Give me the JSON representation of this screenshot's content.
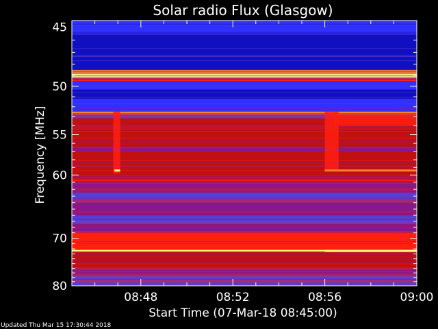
{
  "chart_data": {
    "type": "heatmap",
    "title": "Solar radio Flux (Glasgow)",
    "xlabel": "Start Time (07-Mar-18 08:45:00)",
    "ylabel": "Frequency [MHz]",
    "x_tick_labels": [
      "08:48",
      "08:52",
      "08:56",
      "09:00"
    ],
    "x_tick_values": [
      3,
      7,
      11,
      15
    ],
    "xlim": [
      0,
      15
    ],
    "y_tick_labels": [
      "45",
      "50",
      "55",
      "60",
      "70",
      "80"
    ],
    "y_tick_values": [
      45,
      50,
      55,
      60,
      70,
      80
    ],
    "ylim": [
      44.5,
      80
    ],
    "y_scale": "reciprocal",
    "footer": "Updated Thu Mar 15 17:30:44 2018",
    "colormap": [
      "#000000",
      "#1010c0",
      "#3030ff",
      "#5a3cd0",
      "#8a1888",
      "#c01010",
      "#ff2010",
      "#ff8030",
      "#ffff80"
    ],
    "bands": [
      {
        "f0": 44.5,
        "f1": 45.5,
        "level": 2
      },
      {
        "f0": 45.5,
        "f1": 48.5,
        "level": 1
      },
      {
        "f0": 48.5,
        "f1": 48.8,
        "level": 7
      },
      {
        "f0": 48.8,
        "f1": 49.2,
        "level": 8
      },
      {
        "f0": 49.2,
        "f1": 49.5,
        "level": 6
      },
      {
        "f0": 49.5,
        "f1": 50.3,
        "level": 2
      },
      {
        "f0": 50.3,
        "f1": 51.2,
        "level": 1
      },
      {
        "f0": 51.2,
        "f1": 52.5,
        "level": 2
      },
      {
        "f0": 52.5,
        "f1": 52.8,
        "level": 7
      },
      {
        "f0": 52.8,
        "f1": 53.2,
        "level": 3
      },
      {
        "f0": 53.2,
        "f1": 56.5,
        "level": 5
      },
      {
        "f0": 56.5,
        "f1": 57.0,
        "level": 4
      },
      {
        "f0": 57.0,
        "f1": 61.0,
        "level": 5
      },
      {
        "f0": 61.0,
        "f1": 62.5,
        "level": 4
      },
      {
        "f0": 62.5,
        "f1": 64.0,
        "level": 3
      },
      {
        "f0": 64.0,
        "f1": 66.0,
        "level": 4
      },
      {
        "f0": 66.0,
        "f1": 67.5,
        "level": 3
      },
      {
        "f0": 67.5,
        "f1": 69.0,
        "level": 4
      },
      {
        "f0": 69.0,
        "f1": 72.2,
        "level": 6
      },
      {
        "f0": 72.2,
        "f1": 72.6,
        "level": 8
      },
      {
        "f0": 72.6,
        "f1": 76.0,
        "level": 5
      },
      {
        "f0": 76.0,
        "f1": 77.5,
        "level": 4
      },
      {
        "f0": 77.5,
        "f1": 80.0,
        "level": 3
      }
    ],
    "vertical_features": [
      {
        "t0": 1.8,
        "t1": 2.1,
        "f0": 52.5,
        "f1": 59.8,
        "level": 6
      },
      {
        "t0": 11.0,
        "t1": 11.6,
        "f0": 52.5,
        "f1": 59.5,
        "level": 6
      },
      {
        "t0": 11.4,
        "t1": 15.0,
        "f0": 52.8,
        "f1": 54.0,
        "level": 6
      }
    ],
    "line_features": [
      {
        "t0": 1.85,
        "t1": 2.1,
        "f": 59.4,
        "level": 8
      },
      {
        "t0": 11.0,
        "t1": 15.0,
        "f": 59.4,
        "level": 7
      },
      {
        "t0": 11.0,
        "t1": 15.0,
        "f": 72.4,
        "level": 8
      }
    ]
  }
}
